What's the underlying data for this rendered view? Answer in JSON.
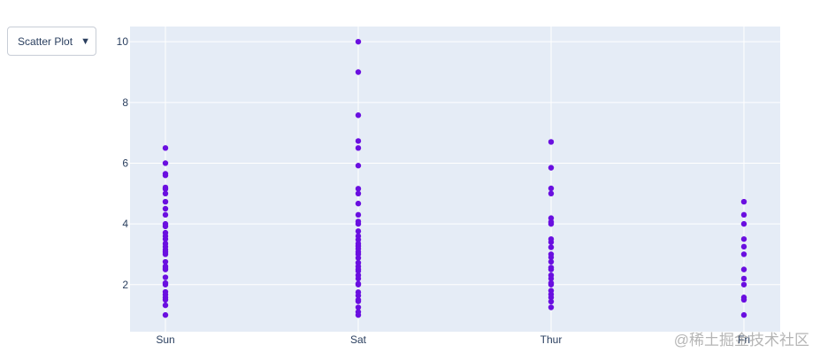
{
  "menu": {
    "selected": "Scatter Plot",
    "arrow_icon": "triangle-down-icon"
  },
  "watermark": "@稀土掘金技术社区",
  "chart_data": {
    "type": "scatter",
    "title": "",
    "xlabel": "",
    "ylabel": "",
    "categories": [
      "Sun",
      "Sat",
      "Thur",
      "Fri"
    ],
    "ylim": [
      0.45,
      10.5
    ],
    "yticks": [
      2,
      4,
      6,
      8,
      10
    ],
    "grid": true,
    "marker_color": "#6a0fe0",
    "plot_bg": "#e5ecf6",
    "series": [
      {
        "values": [
          {
            "x": "Sun",
            "y": 1.0
          },
          {
            "x": "Sun",
            "y": 1.32
          },
          {
            "x": "Sun",
            "y": 1.5
          },
          {
            "x": "Sun",
            "y": 1.57
          },
          {
            "x": "Sun",
            "y": 1.67
          },
          {
            "x": "Sun",
            "y": 1.76
          },
          {
            "x": "Sun",
            "y": 2.0
          },
          {
            "x": "Sun",
            "y": 2.05
          },
          {
            "x": "Sun",
            "y": 2.24
          },
          {
            "x": "Sun",
            "y": 2.5
          },
          {
            "x": "Sun",
            "y": 2.55
          },
          {
            "x": "Sun",
            "y": 2.6
          },
          {
            "x": "Sun",
            "y": 2.75
          },
          {
            "x": "Sun",
            "y": 3.0
          },
          {
            "x": "Sun",
            "y": 3.07
          },
          {
            "x": "Sun",
            "y": 3.15
          },
          {
            "x": "Sun",
            "y": 3.25
          },
          {
            "x": "Sun",
            "y": 3.35
          },
          {
            "x": "Sun",
            "y": 3.5
          },
          {
            "x": "Sun",
            "y": 3.6
          },
          {
            "x": "Sun",
            "y": 3.71
          },
          {
            "x": "Sun",
            "y": 3.92
          },
          {
            "x": "Sun",
            "y": 4.0
          },
          {
            "x": "Sun",
            "y": 4.3
          },
          {
            "x": "Sun",
            "y": 4.5
          },
          {
            "x": "Sun",
            "y": 4.73
          },
          {
            "x": "Sun",
            "y": 5.0
          },
          {
            "x": "Sun",
            "y": 5.15
          },
          {
            "x": "Sun",
            "y": 5.2
          },
          {
            "x": "Sun",
            "y": 5.6
          },
          {
            "x": "Sun",
            "y": 5.65
          },
          {
            "x": "Sun",
            "y": 6.0
          },
          {
            "x": "Sun",
            "y": 6.5
          },
          {
            "x": "Sat",
            "y": 1.0
          },
          {
            "x": "Sat",
            "y": 1.1
          },
          {
            "x": "Sat",
            "y": 1.25
          },
          {
            "x": "Sat",
            "y": 1.45
          },
          {
            "x": "Sat",
            "y": 1.5
          },
          {
            "x": "Sat",
            "y": 1.64
          },
          {
            "x": "Sat",
            "y": 1.75
          },
          {
            "x": "Sat",
            "y": 2.0
          },
          {
            "x": "Sat",
            "y": 2.03
          },
          {
            "x": "Sat",
            "y": 2.2
          },
          {
            "x": "Sat",
            "y": 2.31
          },
          {
            "x": "Sat",
            "y": 2.45
          },
          {
            "x": "Sat",
            "y": 2.5
          },
          {
            "x": "Sat",
            "y": 2.6
          },
          {
            "x": "Sat",
            "y": 2.72
          },
          {
            "x": "Sat",
            "y": 2.88
          },
          {
            "x": "Sat",
            "y": 3.0
          },
          {
            "x": "Sat",
            "y": 3.08
          },
          {
            "x": "Sat",
            "y": 3.18
          },
          {
            "x": "Sat",
            "y": 3.27
          },
          {
            "x": "Sat",
            "y": 3.35
          },
          {
            "x": "Sat",
            "y": 3.48
          },
          {
            "x": "Sat",
            "y": 3.6
          },
          {
            "x": "Sat",
            "y": 3.76
          },
          {
            "x": "Sat",
            "y": 4.0
          },
          {
            "x": "Sat",
            "y": 4.08
          },
          {
            "x": "Sat",
            "y": 4.3
          },
          {
            "x": "Sat",
            "y": 4.67
          },
          {
            "x": "Sat",
            "y": 5.0
          },
          {
            "x": "Sat",
            "y": 5.16
          },
          {
            "x": "Sat",
            "y": 5.92
          },
          {
            "x": "Sat",
            "y": 6.5
          },
          {
            "x": "Sat",
            "y": 6.73
          },
          {
            "x": "Sat",
            "y": 7.58
          },
          {
            "x": "Sat",
            "y": 9.0
          },
          {
            "x": "Sat",
            "y": 10.0
          },
          {
            "x": "Thur",
            "y": 1.25
          },
          {
            "x": "Thur",
            "y": 1.44
          },
          {
            "x": "Thur",
            "y": 1.58
          },
          {
            "x": "Thur",
            "y": 1.68
          },
          {
            "x": "Thur",
            "y": 1.8
          },
          {
            "x": "Thur",
            "y": 2.0
          },
          {
            "x": "Thur",
            "y": 2.05
          },
          {
            "x": "Thur",
            "y": 2.2
          },
          {
            "x": "Thur",
            "y": 2.31
          },
          {
            "x": "Thur",
            "y": 2.5
          },
          {
            "x": "Thur",
            "y": 2.56
          },
          {
            "x": "Thur",
            "y": 2.75
          },
          {
            "x": "Thur",
            "y": 2.9
          },
          {
            "x": "Thur",
            "y": 3.0
          },
          {
            "x": "Thur",
            "y": 3.23
          },
          {
            "x": "Thur",
            "y": 3.4
          },
          {
            "x": "Thur",
            "y": 3.5
          },
          {
            "x": "Thur",
            "y": 4.0
          },
          {
            "x": "Thur",
            "y": 4.06
          },
          {
            "x": "Thur",
            "y": 4.19
          },
          {
            "x": "Thur",
            "y": 5.0
          },
          {
            "x": "Thur",
            "y": 5.17
          },
          {
            "x": "Thur",
            "y": 5.85
          },
          {
            "x": "Thur",
            "y": 6.7
          },
          {
            "x": "Fri",
            "y": 1.0
          },
          {
            "x": "Fri",
            "y": 1.5
          },
          {
            "x": "Fri",
            "y": 1.58
          },
          {
            "x": "Fri",
            "y": 2.0
          },
          {
            "x": "Fri",
            "y": 2.2
          },
          {
            "x": "Fri",
            "y": 2.5
          },
          {
            "x": "Fri",
            "y": 3.0
          },
          {
            "x": "Fri",
            "y": 3.25
          },
          {
            "x": "Fri",
            "y": 3.5
          },
          {
            "x": "Fri",
            "y": 4.0
          },
          {
            "x": "Fri",
            "y": 4.3
          },
          {
            "x": "Fri",
            "y": 4.73
          }
        ]
      }
    ]
  }
}
